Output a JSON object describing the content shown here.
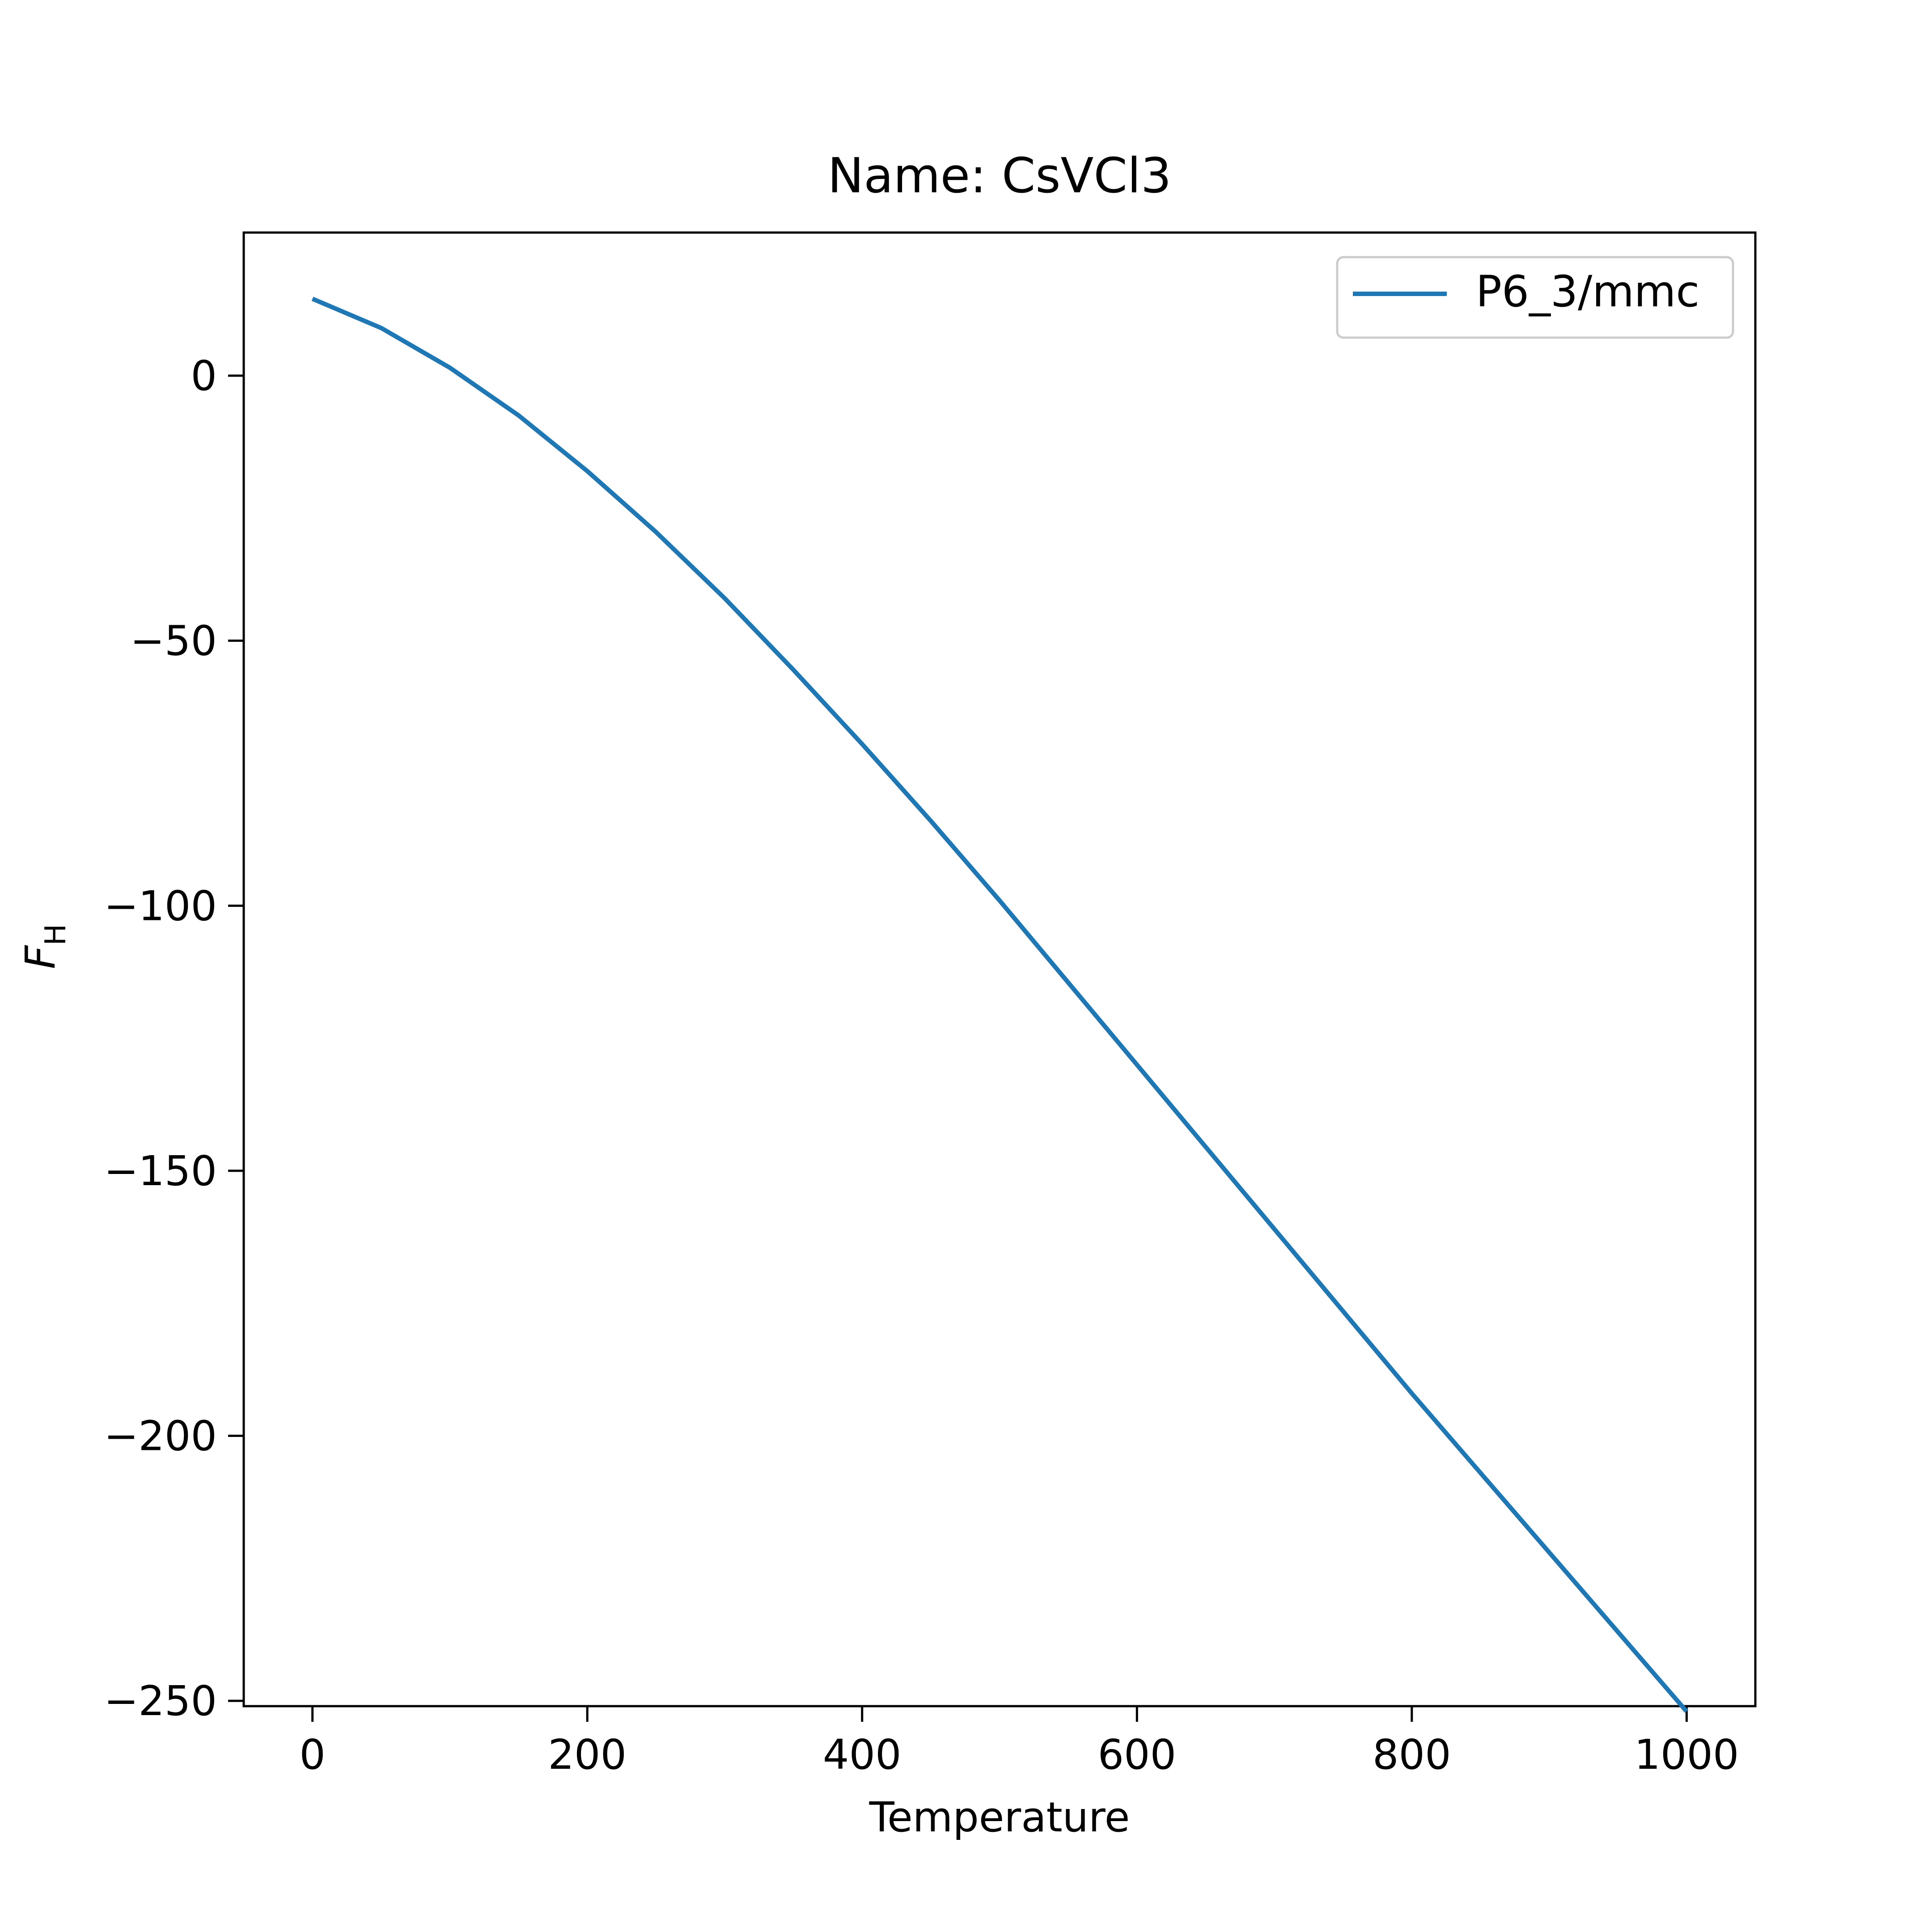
{
  "chart_data": {
    "type": "line",
    "title": "Name: CsVCl3",
    "xlabel": "Temperature",
    "ylabel": {
      "main": "F",
      "sub": "H"
    },
    "xlim": [
      -50,
      1050
    ],
    "ylim": [
      -251,
      27
    ],
    "xticks": [
      0,
      200,
      400,
      600,
      800,
      1000
    ],
    "yticks": [
      0,
      -50,
      -100,
      -150,
      -200,
      -250
    ],
    "xtick_labels": [
      "0",
      "200",
      "400",
      "600",
      "800",
      "1000"
    ],
    "ytick_labels": [
      "0",
      "−50",
      "−100",
      "−150",
      "−200",
      "−250"
    ],
    "grid": false,
    "legend_position": "top-right",
    "series": [
      {
        "name": "P6_3/mmc",
        "color": "#1f77b4",
        "x": [
          0,
          50,
          100,
          150,
          200,
          250,
          300,
          350,
          400,
          450,
          500,
          550,
          600,
          650,
          700,
          750,
          800,
          850,
          900,
          950,
          1000
        ],
        "y": [
          14.5,
          9.0,
          1.5,
          -7.5,
          -18.0,
          -29.5,
          -42.0,
          -55.5,
          -69.5,
          -84.0,
          -99.0,
          -114.5,
          -130.0,
          -145.5,
          -161.0,
          -176.5,
          -192.0,
          -207.0,
          -222.0,
          -237.0,
          -252.0
        ]
      }
    ]
  }
}
